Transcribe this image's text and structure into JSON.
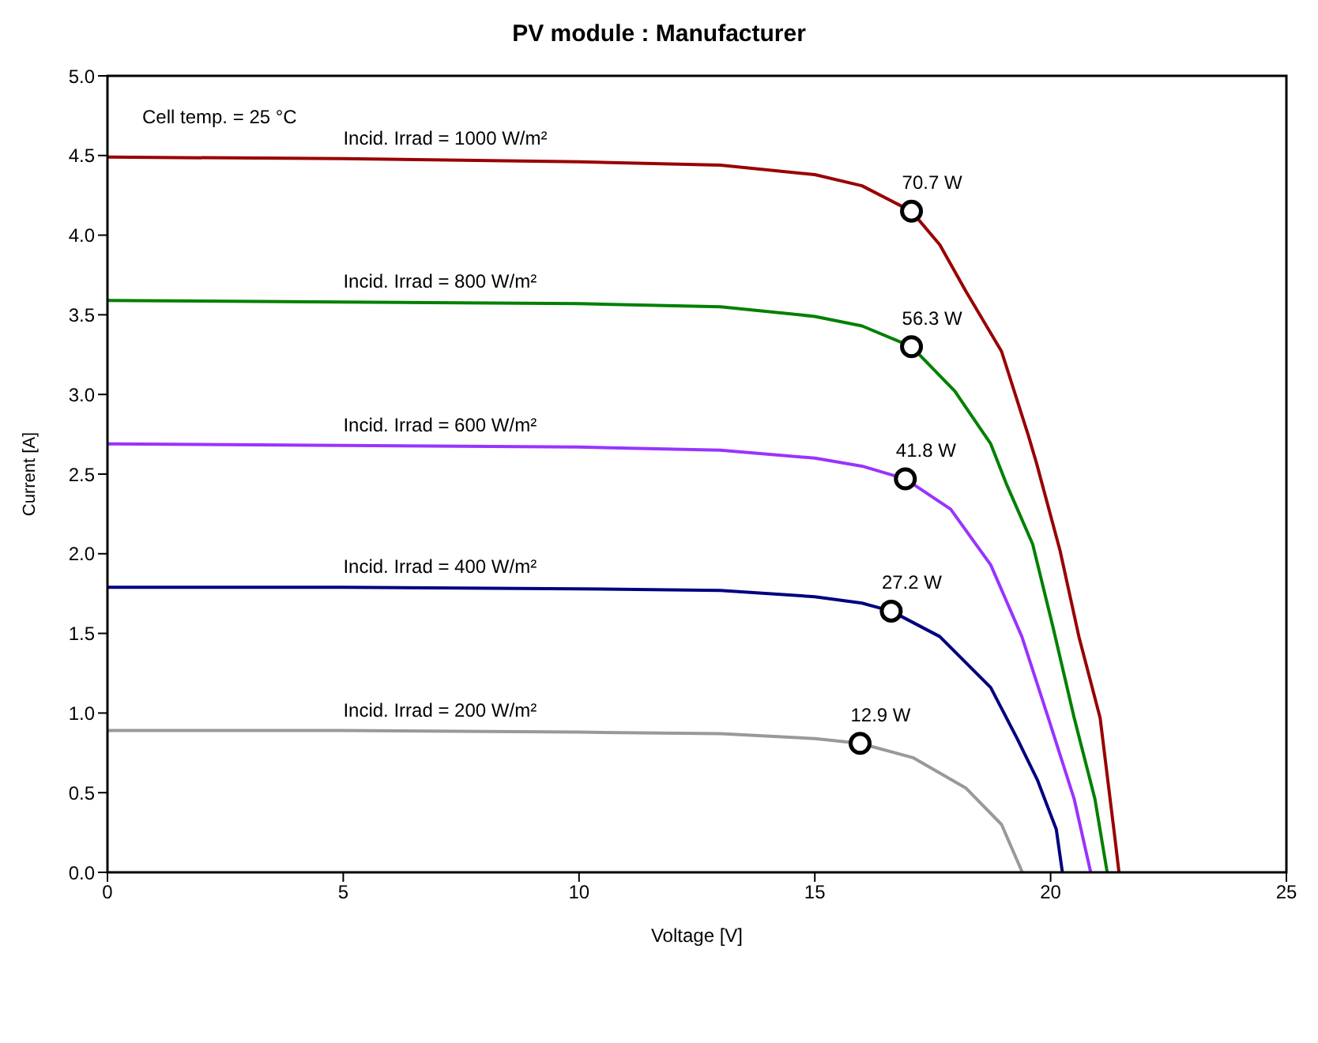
{
  "chart_data": {
    "type": "line",
    "title": "PV module : Manufacturer",
    "xlabel": "Voltage [V]",
    "ylabel": "Current [A]",
    "xlim": [
      0,
      25
    ],
    "xticks": [
      0,
      5,
      10,
      15,
      20,
      25
    ],
    "ylim": [
      0,
      5
    ],
    "yticks": [
      {
        "value": 0,
        "label": "0.0"
      },
      {
        "value": 0.5,
        "label": "0.5"
      },
      {
        "value": 1,
        "label": "1.0"
      },
      {
        "value": 1.5,
        "label": "1.5"
      },
      {
        "value": 2,
        "label": "2.0"
      },
      {
        "value": 2.5,
        "label": "2.5"
      },
      {
        "value": 3,
        "label": "3.0"
      },
      {
        "value": 3.5,
        "label": "3.5"
      },
      {
        "value": 4,
        "label": "4.0"
      },
      {
        "value": 4.5,
        "label": "4.5"
      },
      {
        "value": 5,
        "label": "5.0"
      }
    ],
    "series": [
      {
        "name": "Incid. Irrad = 1000 W/m²",
        "color": "#990000",
        "x": [
          0,
          5,
          10,
          13,
          15,
          16,
          17.05,
          17.65,
          18.2,
          18.96,
          19.52,
          19.7,
          20.2,
          20.6,
          21.05,
          21.37,
          21.45
        ],
        "values": [
          4.49,
          4.48,
          4.46,
          4.44,
          4.38,
          4.31,
          4.15,
          3.94,
          3.65,
          3.27,
          2.75,
          2.57,
          2.02,
          1.48,
          0.97,
          0.2,
          0
        ]
      },
      {
        "name": "Incid. Irrad =  800 W/m²",
        "color": "#008000",
        "x": [
          0,
          5,
          10,
          13,
          15,
          16,
          17.05,
          17.97,
          18.73,
          19.06,
          19.62,
          20.05,
          20.5,
          20.94,
          21.2
        ],
        "values": [
          3.59,
          3.58,
          3.57,
          3.55,
          3.49,
          3.43,
          3.3,
          3.02,
          2.69,
          2.44,
          2.06,
          1.54,
          0.97,
          0.46,
          0
        ]
      },
      {
        "name": "Incid. Irrad =  600 W/m²",
        "color": "#9933ff",
        "x": [
          0,
          5,
          10,
          13,
          15,
          16,
          16.92,
          17.88,
          18.73,
          19.39,
          19.95,
          20.5,
          20.85
        ],
        "values": [
          2.69,
          2.68,
          2.67,
          2.65,
          2.6,
          2.55,
          2.47,
          2.28,
          1.93,
          1.48,
          0.97,
          0.46,
          0
        ]
      },
      {
        "name": "Incid. Irrad =  400 W/m²",
        "color": "#000080",
        "x": [
          0,
          5,
          10,
          13,
          15,
          16,
          16.62,
          17.65,
          18.73,
          19.29,
          19.72,
          20.12,
          20.25
        ],
        "values": [
          1.79,
          1.79,
          1.78,
          1.77,
          1.73,
          1.69,
          1.64,
          1.48,
          1.16,
          0.84,
          0.58,
          0.27,
          0
        ]
      },
      {
        "name": "Incid. Irrad =  200 W/m²",
        "color": "#999999",
        "x": [
          0,
          5,
          10,
          13,
          15,
          15.96,
          17.08,
          18.2,
          18.96,
          19.4
        ],
        "values": [
          0.89,
          0.89,
          0.88,
          0.87,
          0.84,
          0.81,
          0.72,
          0.53,
          0.3,
          0
        ]
      },
      {
        "type": "scatter",
        "marker": "circle",
        "color": "#000000",
        "x": [
          17.05,
          17.05,
          16.92,
          16.62,
          15.96
        ],
        "values": [
          4.15,
          3.3,
          2.47,
          1.64,
          0.81
        ]
      }
    ],
    "annotations": [
      "Cell temp. =   25 °C",
      {
        "text": "70.7 W",
        "x": 17.05,
        "y": 4.15
      },
      {
        "text": "56.3 W",
        "x": 17.05,
        "y": 3.3
      },
      {
        "text": "41.8 W",
        "x": 16.92,
        "y": 2.47
      },
      {
        "text": "27.2 W",
        "x": 16.62,
        "y": 1.64
      },
      {
        "text": "12.9 W",
        "x": 15.96,
        "y": 0.81
      }
    ]
  }
}
